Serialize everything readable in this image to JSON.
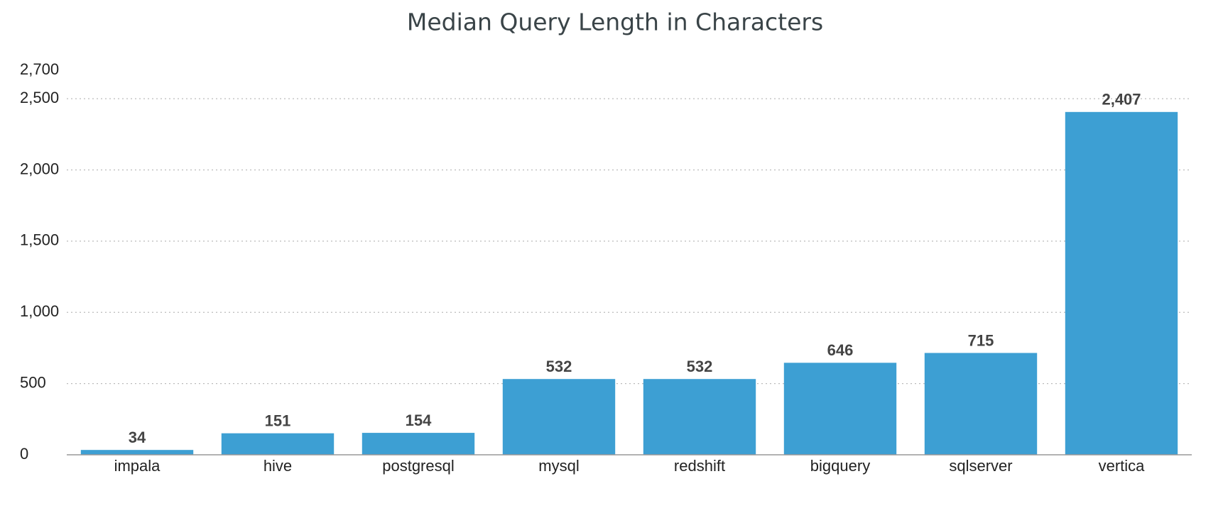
{
  "chart_data": {
    "type": "bar",
    "title": "Median Query Length in Characters",
    "categories": [
      "impala",
      "hive",
      "postgresql",
      "mysql",
      "redshift",
      "bigquery",
      "sqlserver",
      "vertica"
    ],
    "values": [
      34,
      151,
      154,
      532,
      532,
      646,
      715,
      2407
    ],
    "value_labels": [
      "34",
      "151",
      "154",
      "532",
      "532",
      "646",
      "715",
      "2,407"
    ],
    "color": "#3d9fd3",
    "ylim": [
      0,
      2700
    ],
    "yticks": [
      0,
      500,
      {
        "value": 1000,
        "label": "1,000"
      },
      {
        "value": 1500,
        "label": "1,500"
      },
      {
        "value": 2000,
        "label": "2,000"
      },
      {
        "value": 2500,
        "label": "2,500"
      },
      {
        "value": 2700,
        "label": "2,700"
      }
    ],
    "grid": true
  }
}
